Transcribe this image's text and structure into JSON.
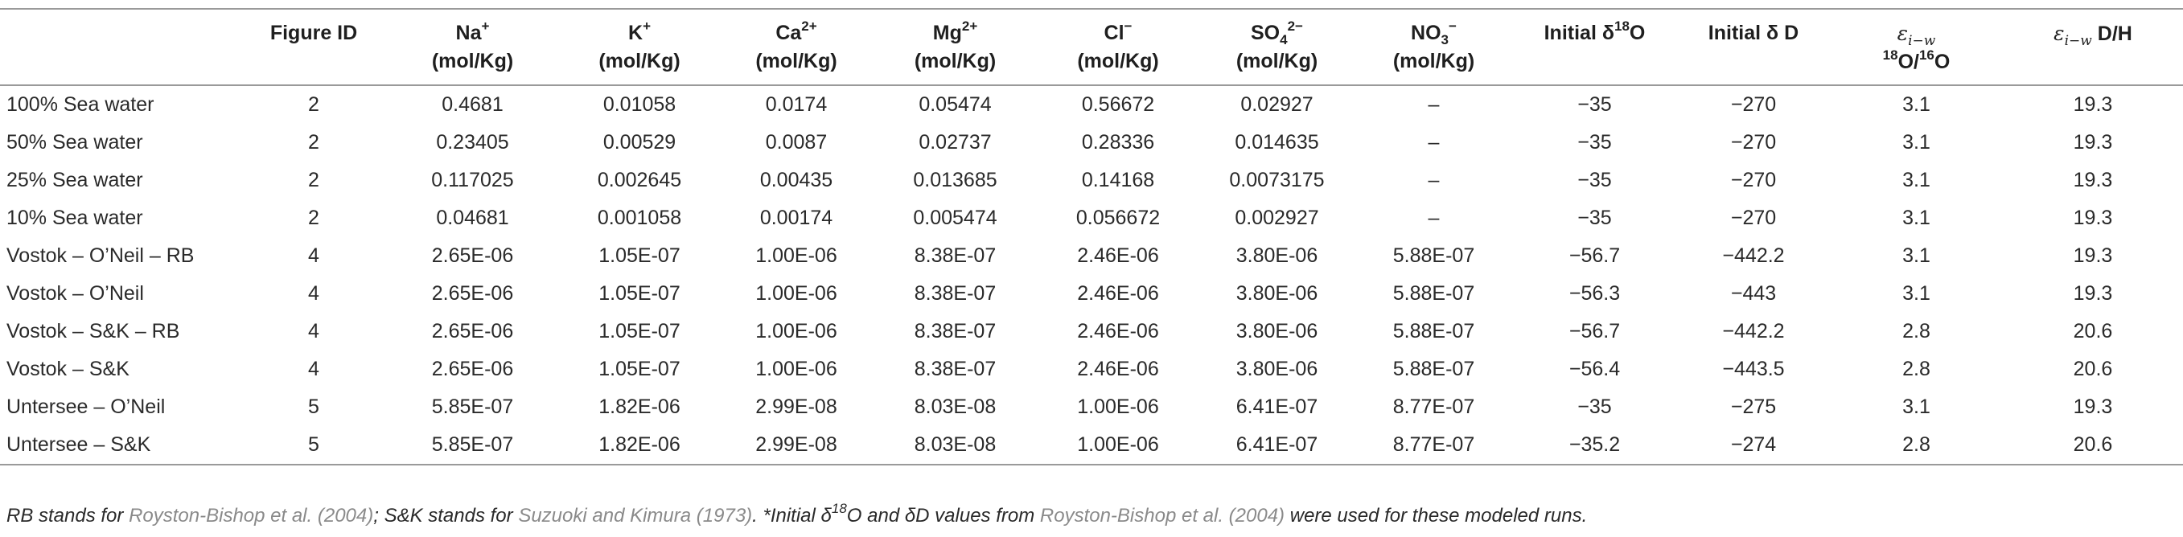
{
  "table": {
    "headers": {
      "name": "",
      "figure_id": "Figure ID",
      "na": {
        "symbol": "Na",
        "charge": "+",
        "unit": "(mol/Kg)"
      },
      "k": {
        "symbol": "K",
        "charge": "+",
        "unit": "(mol/Kg)"
      },
      "ca": {
        "symbol": "Ca",
        "charge": "2+",
        "unit": "(mol/Kg)"
      },
      "mg": {
        "symbol": "Mg",
        "charge": "2+",
        "unit": "(mol/Kg)"
      },
      "cl": {
        "symbol": "Cl",
        "charge": "−",
        "unit": "(mol/Kg)"
      },
      "so4": {
        "symbol": "SO",
        "sub": "4",
        "charge": "2−",
        "unit": "(mol/Kg)"
      },
      "no3": {
        "symbol": "NO",
        "sub": "3",
        "charge": "−",
        "unit": "(mol/Kg)"
      },
      "d18o": {
        "prefix": "Initial δ",
        "sup": "18",
        "suffix": "O"
      },
      "dd": {
        "text": "Initial δ D"
      },
      "eps_o": {
        "eps": "ε",
        "eps_sub": "i−w",
        "line2_sup1": "18",
        "line2_mid": "O/",
        "line2_sup2": "16",
        "line2_end": "O"
      },
      "eps_h": {
        "eps": "ε",
        "eps_sub": "i−w",
        "suffix": " D/H"
      }
    },
    "rows": [
      {
        "name": "100% Sea water",
        "fig": "2",
        "na": "0.4681",
        "k": "0.01058",
        "ca": "0.0174",
        "mg": "0.05474",
        "cl": "0.56672",
        "so4": "0.02927",
        "no3": "–",
        "d18o": "−35",
        "dd": "−270",
        "eps_o": "3.1",
        "eps_h": "19.3"
      },
      {
        "name": "50% Sea water",
        "fig": "2",
        "na": "0.23405",
        "k": "0.00529",
        "ca": "0.0087",
        "mg": "0.02737",
        "cl": "0.28336",
        "so4": "0.014635",
        "no3": "–",
        "d18o": "−35",
        "dd": "−270",
        "eps_o": "3.1",
        "eps_h": "19.3"
      },
      {
        "name": "25% Sea water",
        "fig": "2",
        "na": "0.117025",
        "k": "0.002645",
        "ca": "0.00435",
        "mg": "0.013685",
        "cl": "0.14168",
        "so4": "0.0073175",
        "no3": "–",
        "d18o": "−35",
        "dd": "−270",
        "eps_o": "3.1",
        "eps_h": "19.3"
      },
      {
        "name": "10% Sea water",
        "fig": "2",
        "na": "0.04681",
        "k": "0.001058",
        "ca": "0.00174",
        "mg": "0.005474",
        "cl": "0.056672",
        "so4": "0.002927",
        "no3": "–",
        "d18o": "−35",
        "dd": "−270",
        "eps_o": "3.1",
        "eps_h": "19.3"
      },
      {
        "name": "Vostok – O’Neil – RB",
        "fig": "4",
        "na": "2.65E-06",
        "k": "1.05E-07",
        "ca": "1.00E-06",
        "mg": "8.38E-07",
        "cl": "2.46E-06",
        "so4": "3.80E-06",
        "no3": "5.88E-07",
        "d18o": "−56.7",
        "dd": "−442.2",
        "eps_o": "3.1",
        "eps_h": "19.3"
      },
      {
        "name": "Vostok – O’Neil",
        "fig": "4",
        "na": "2.65E-06",
        "k": "1.05E-07",
        "ca": "1.00E-06",
        "mg": "8.38E-07",
        "cl": "2.46E-06",
        "so4": "3.80E-06",
        "no3": "5.88E-07",
        "d18o": "−56.3",
        "dd": "−443",
        "eps_o": "3.1",
        "eps_h": "19.3"
      },
      {
        "name": "Vostok – S&K – RB",
        "fig": "4",
        "na": "2.65E-06",
        "k": "1.05E-07",
        "ca": "1.00E-06",
        "mg": "8.38E-07",
        "cl": "2.46E-06",
        "so4": "3.80E-06",
        "no3": "5.88E-07",
        "d18o": "−56.7",
        "dd": "−442.2",
        "eps_o": "2.8",
        "eps_h": "20.6"
      },
      {
        "name": "Vostok – S&K",
        "fig": "4",
        "na": "2.65E-06",
        "k": "1.05E-07",
        "ca": "1.00E-06",
        "mg": "8.38E-07",
        "cl": "2.46E-06",
        "so4": "3.80E-06",
        "no3": "5.88E-07",
        "d18o": "−56.4",
        "dd": "−443.5",
        "eps_o": "2.8",
        "eps_h": "20.6"
      },
      {
        "name": "Untersee – O’Neil",
        "fig": "5",
        "na": "5.85E-07",
        "k": "1.82E-06",
        "ca": "2.99E-08",
        "mg": "8.03E-08",
        "cl": "1.00E-06",
        "so4": "6.41E-07",
        "no3": "8.77E-07",
        "d18o": "−35",
        "dd": "−275",
        "eps_o": "3.1",
        "eps_h": "19.3"
      },
      {
        "name": "Untersee – S&K",
        "fig": "5",
        "na": "5.85E-07",
        "k": "1.82E-06",
        "ca": "2.99E-08",
        "mg": "8.03E-08",
        "cl": "1.00E-06",
        "so4": "6.41E-07",
        "no3": "8.77E-07",
        "d18o": "−35.2",
        "dd": "−274",
        "eps_o": "2.8",
        "eps_h": "20.6"
      }
    ]
  },
  "footnote": {
    "part1": "RB stands for ",
    "ref1": "Royston-Bishop et al. (2004)",
    "part2": "; S&K stands for ",
    "ref2": "Suzuoki and Kimura (1973)",
    "part3": ". *Initial δ",
    "sup": "18",
    "part4": "O and δD values from ",
    "ref3": "Royston-Bishop et al. (2004)",
    "part5": " were used for these modeled runs."
  }
}
